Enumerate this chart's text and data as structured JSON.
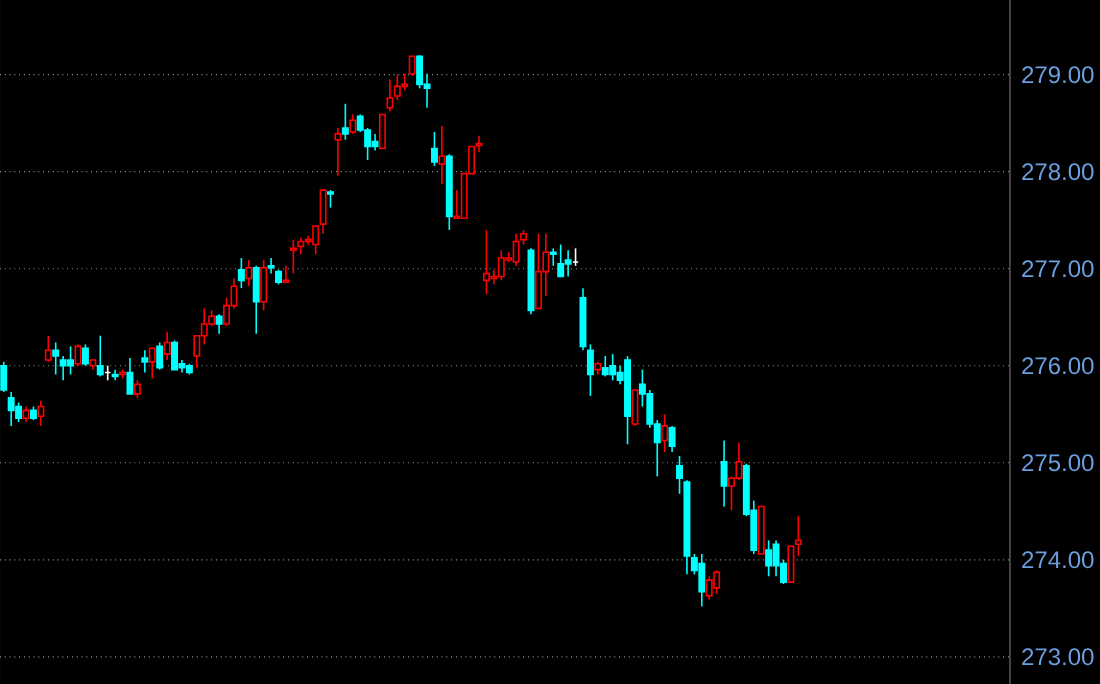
{
  "chart_data": {
    "type": "candlestick",
    "tick_labels": "y",
    "grid": "y",
    "ylim": [
      272.72,
      279.77
    ],
    "yticks": [
      {
        "value": 273,
        "label": "273.00"
      },
      {
        "value": 274,
        "label": "274.00"
      },
      {
        "value": 275,
        "label": "275.00"
      },
      {
        "value": 276,
        "label": "276.00"
      },
      {
        "value": 277,
        "label": "277.00"
      },
      {
        "value": 278,
        "label": "278.00"
      },
      {
        "value": 279,
        "label": "279.00"
      }
    ],
    "categories": [
      null,
      null,
      null,
      null,
      null,
      null,
      null,
      null,
      null,
      null,
      null,
      null,
      null,
      null,
      null,
      null,
      null,
      null,
      null,
      null,
      null,
      null,
      null,
      null,
      null,
      null,
      null,
      null,
      null,
      null,
      null,
      null,
      null,
      null,
      null,
      null,
      null,
      null,
      null,
      null,
      null,
      null,
      null,
      null,
      null,
      null,
      null,
      null,
      null,
      null,
      null,
      null,
      null,
      null,
      null,
      null,
      null,
      null,
      null,
      null,
      null,
      null,
      null,
      null,
      null,
      null,
      null,
      null,
      null,
      null,
      null,
      null,
      null,
      null,
      null,
      null,
      null,
      null,
      null,
      null,
      null,
      null,
      null,
      null,
      null,
      null,
      null,
      null,
      null,
      null,
      null,
      null,
      null,
      null,
      null,
      null,
      null,
      null,
      null,
      null,
      null,
      null,
      null,
      null,
      null,
      null,
      null,
      null,
      null,
      null,
      null,
      null,
      null,
      null,
      null,
      null,
      null,
      null,
      null,
      null,
      null,
      null,
      null,
      null,
      null,
      null,
      null,
      null,
      null,
      null,
      null,
      null,
      null,
      null,
      null,
      null
    ],
    "ohlc": [
      [
        276.0,
        276.04,
        275.73,
        275.75
      ],
      [
        275.67,
        275.73,
        275.38,
        275.54
      ],
      [
        275.58,
        275.62,
        275.42,
        275.46
      ],
      [
        275.46,
        275.58,
        275.42,
        275.54
      ],
      [
        275.54,
        275.58,
        275.44,
        275.46
      ],
      [
        275.48,
        275.64,
        275.38,
        275.58
      ],
      [
        276.06,
        276.31,
        276.04,
        276.16
      ],
      [
        276.16,
        276.24,
        275.91,
        276.1
      ],
      [
        276.06,
        276.1,
        275.85,
        276.0
      ],
      [
        276.06,
        276.2,
        275.91,
        276.0
      ],
      [
        276.02,
        276.22,
        276.0,
        276.2
      ],
      [
        276.18,
        276.22,
        276.0,
        276.02
      ],
      [
        276.0,
        276.06,
        275.96,
        276.06
      ],
      [
        276.0,
        276.31,
        275.89,
        275.91
      ],
      [
        275.93,
        276.0,
        275.85,
        275.93
      ],
      [
        275.91,
        275.96,
        275.85,
        275.89
      ],
      [
        275.91,
        275.96,
        275.87,
        275.93
      ],
      [
        275.93,
        276.08,
        275.71,
        275.71
      ],
      [
        275.71,
        275.85,
        275.67,
        275.81
      ],
      [
        276.08,
        276.16,
        275.93,
        276.04
      ],
      [
        276.04,
        276.18,
        275.87,
        276.18
      ],
      [
        276.2,
        276.24,
        275.96,
        275.98
      ],
      [
        276.12,
        276.35,
        276.06,
        276.24
      ],
      [
        276.24,
        276.26,
        275.96,
        275.96
      ],
      [
        276.02,
        276.06,
        275.93,
        275.98
      ],
      [
        276.0,
        276.02,
        275.91,
        275.93
      ],
      [
        276.1,
        276.31,
        275.98,
        276.31
      ],
      [
        276.31,
        276.59,
        276.22,
        276.43
      ],
      [
        276.43,
        276.57,
        276.41,
        276.51
      ],
      [
        276.51,
        276.53,
        276.33,
        276.43
      ],
      [
        276.43,
        276.7,
        276.41,
        276.62
      ],
      [
        276.62,
        276.9,
        276.59,
        276.82
      ],
      [
        276.99,
        277.11,
        276.8,
        276.88
      ],
      [
        276.9,
        277.09,
        276.82,
        277.01
      ],
      [
        277.01,
        277.03,
        276.33,
        276.66
      ],
      [
        276.66,
        277.09,
        276.57,
        277.01
      ],
      [
        277.03,
        277.11,
        276.95,
        277.01
      ],
      [
        276.97,
        276.99,
        276.84,
        276.86
      ],
      [
        276.86,
        277.03,
        276.86,
        276.88
      ],
      [
        277.19,
        277.3,
        276.95,
        277.21
      ],
      [
        277.23,
        277.32,
        277.15,
        277.28
      ],
      [
        277.28,
        277.34,
        277.25,
        277.3
      ],
      [
        277.25,
        277.44,
        277.15,
        277.44
      ],
      [
        277.46,
        277.81,
        277.36,
        277.81
      ],
      [
        277.79,
        277.81,
        277.63,
        277.77
      ],
      [
        278.33,
        278.45,
        277.96,
        278.39
      ],
      [
        278.45,
        278.7,
        278.33,
        278.39
      ],
      [
        278.41,
        278.59,
        278.39,
        278.53
      ],
      [
        278.57,
        278.59,
        278.41,
        278.43
      ],
      [
        278.43,
        278.45,
        278.12,
        278.26
      ],
      [
        278.31,
        278.39,
        278.22,
        278.26
      ],
      [
        278.24,
        278.59,
        278.24,
        278.59
      ],
      [
        278.66,
        278.95,
        278.62,
        278.76
      ],
      [
        278.78,
        279.0,
        278.74,
        278.88
      ],
      [
        278.88,
        279.01,
        278.84,
        278.9
      ],
      [
        279.01,
        279.19,
        278.99,
        279.19
      ],
      [
        279.19,
        279.2,
        278.86,
        278.9
      ],
      [
        278.9,
        279.01,
        278.66,
        278.86
      ],
      [
        278.24,
        278.41,
        278.06,
        278.1
      ],
      [
        278.08,
        278.47,
        277.87,
        278.16
      ],
      [
        278.16,
        278.18,
        277.4,
        277.54
      ],
      [
        277.52,
        277.81,
        277.52,
        277.54
      ],
      [
        277.52,
        277.98,
        277.52,
        277.98
      ],
      [
        277.98,
        278.26,
        277.98,
        278.26
      ],
      [
        278.27,
        278.37,
        278.2,
        278.29
      ],
      [
        276.88,
        277.4,
        276.74,
        276.95
      ],
      [
        276.9,
        276.99,
        276.84,
        276.92
      ],
      [
        276.92,
        277.19,
        276.88,
        277.11
      ],
      [
        277.09,
        277.17,
        277.07,
        277.11
      ],
      [
        277.07,
        277.36,
        277.03,
        277.28
      ],
      [
        277.3,
        277.4,
        277.25,
        277.36
      ],
      [
        277.19,
        277.21,
        276.53,
        276.57
      ],
      [
        276.59,
        277.36,
        276.59,
        276.97
      ],
      [
        276.97,
        277.36,
        276.72,
        277.17
      ],
      [
        277.17,
        277.21,
        277.03,
        277.15
      ],
      [
        277.05,
        277.25,
        276.92,
        276.92
      ],
      [
        277.09,
        277.19,
        276.92,
        277.05
      ],
      [
        277.07,
        277.21,
        277.03,
        277.07
      ],
      [
        276.7,
        276.8,
        276.16,
        276.2
      ],
      [
        276.16,
        276.22,
        275.69,
        275.91
      ],
      [
        275.96,
        276.04,
        275.91,
        276.02
      ],
      [
        275.98,
        276.1,
        275.89,
        275.91
      ],
      [
        276.0,
        276.12,
        275.85,
        275.91
      ],
      [
        275.93,
        276.0,
        275.81,
        275.85
      ],
      [
        276.06,
        276.1,
        275.19,
        275.48
      ],
      [
        275.4,
        275.75,
        275.38,
        275.75
      ],
      [
        275.81,
        275.96,
        275.58,
        275.71
      ],
      [
        275.71,
        275.75,
        275.36,
        275.4
      ],
      [
        275.4,
        275.44,
        274.86,
        275.21
      ],
      [
        275.23,
        275.5,
        275.11,
        275.38
      ],
      [
        275.36,
        275.38,
        275.11,
        275.17
      ],
      [
        274.97,
        275.07,
        274.68,
        274.84
      ],
      [
        274.8,
        274.82,
        273.85,
        274.04
      ],
      [
        274.02,
        274.06,
        273.85,
        273.89
      ],
      [
        273.96,
        274.06,
        273.52,
        273.67
      ],
      [
        273.63,
        273.83,
        273.59,
        273.79
      ],
      [
        273.71,
        273.89,
        273.65,
        273.87
      ],
      [
        275.01,
        275.23,
        274.55,
        274.76
      ],
      [
        274.76,
        274.86,
        274.51,
        274.84
      ],
      [
        274.84,
        275.21,
        274.82,
        275.01
      ],
      [
        274.97,
        274.99,
        274.45,
        274.47
      ],
      [
        274.51,
        274.61,
        274.06,
        274.1
      ],
      [
        274.06,
        274.55,
        274.06,
        274.55
      ],
      [
        274.1,
        274.2,
        273.83,
        273.94
      ],
      [
        274.16,
        274.2,
        273.83,
        273.94
      ],
      [
        273.96,
        274.0,
        273.75,
        273.77
      ],
      [
        273.77,
        274.14,
        273.77,
        274.14
      ],
      [
        274.16,
        274.45,
        274.04,
        274.2
      ],
      null,
      null,
      null,
      null,
      null,
      null,
      null,
      null,
      null,
      null,
      null,
      null,
      null,
      null,
      null,
      null,
      null,
      null,
      null,
      null,
      null,
      null,
      null,
      null,
      null,
      null,
      null,
      null
    ],
    "colors": [
      "#00ffff",
      "#00ffff",
      "#00ffff",
      "#ff0000",
      "#00ffff",
      "#ff0000",
      "#ff0000",
      "#00ffff",
      "#00ffff",
      "#00ffff",
      "#ff0000",
      "#00ffff",
      "#ff0000",
      "#00ffff",
      "#ffffff",
      "#00ffff",
      "#ff0000",
      "#00ffff",
      "#ff0000",
      "#00ffff",
      "#ff0000",
      "#00ffff",
      "#ff0000",
      "#00ffff",
      "#00ffff",
      "#00ffff",
      "#ff0000",
      "#ff0000",
      "#ff0000",
      "#00ffff",
      "#ff0000",
      "#ff0000",
      "#00ffff",
      "#ff0000",
      "#00ffff",
      "#ff0000",
      "#00ffff",
      "#00ffff",
      "#ff0000",
      "#ff0000",
      "#ff0000",
      "#ff0000",
      "#ff0000",
      "#ff0000",
      "#00ffff",
      "#ff0000",
      "#00ffff",
      "#ff0000",
      "#00ffff",
      "#00ffff",
      "#00ffff",
      "#ff0000",
      "#ff0000",
      "#ff0000",
      "#ff0000",
      "#ff0000",
      "#00ffff",
      "#00ffff",
      "#00ffff",
      "#ff0000",
      "#00ffff",
      "#ff0000",
      "#ff0000",
      "#ff0000",
      "#ff0000",
      "#ff0000",
      "#ff0000",
      "#ff0000",
      "#ff0000",
      "#ff0000",
      "#ff0000",
      "#00ffff",
      "#ff0000",
      "#ff0000",
      "#00ffff",
      "#00ffff",
      "#00ffff",
      "#ffffff",
      "#00ffff",
      "#00ffff",
      "#ff0000",
      "#00ffff",
      "#00ffff",
      "#00ffff",
      "#00ffff",
      "#ff0000",
      "#00ffff",
      "#00ffff",
      "#00ffff",
      "#ff0000",
      "#00ffff",
      "#00ffff",
      "#00ffff",
      "#00ffff",
      "#00ffff",
      "#ff0000",
      "#ff0000",
      "#00ffff",
      "#ff0000",
      "#ff0000",
      "#00ffff",
      "#00ffff",
      "#ff0000",
      "#00ffff",
      "#00ffff",
      "#00ffff",
      "#ff0000",
      "#ff0000",
      null,
      null,
      null,
      null,
      null,
      null,
      null,
      null,
      null,
      null,
      null,
      null,
      null,
      null,
      null,
      null,
      null,
      null,
      null,
      null,
      null,
      null,
      null,
      null,
      null,
      null,
      null,
      null
    ]
  }
}
